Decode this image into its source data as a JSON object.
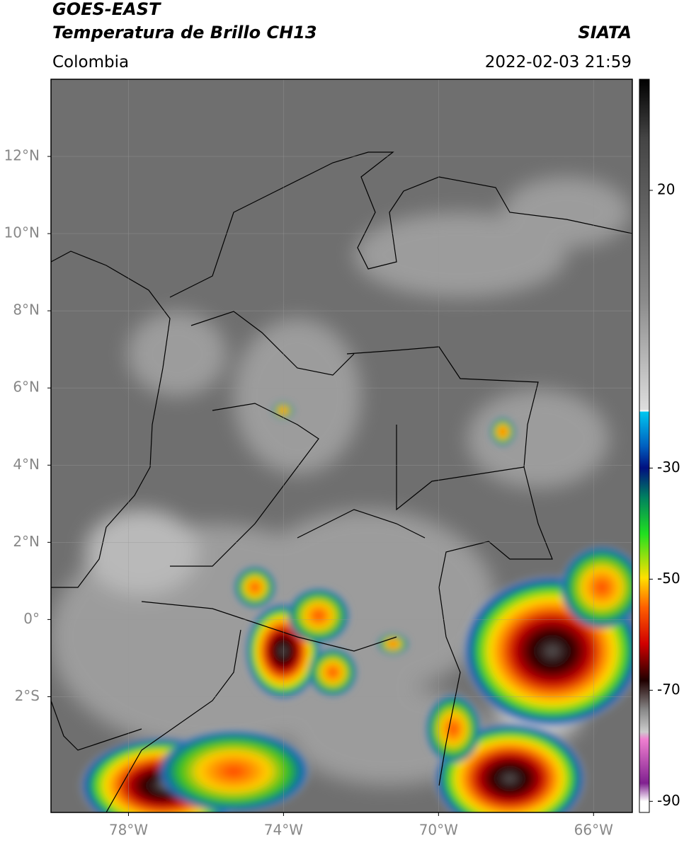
{
  "header": {
    "title": "GOES-EAST",
    "subtitle": "Temperatura de Brillo CH13",
    "source": "SIATA",
    "region": "Colombia",
    "datetime": "2022-02-03 21:59"
  },
  "map": {
    "xlim": [
      -80,
      -65
    ],
    "ylim": [
      -5,
      14
    ],
    "xticks": [
      {
        "value": -78,
        "label": "78°W"
      },
      {
        "value": -74,
        "label": "74°W"
      },
      {
        "value": -70,
        "label": "70°W"
      },
      {
        "value": -66,
        "label": "66°W"
      }
    ],
    "yticks": [
      {
        "value": 12,
        "label": "12°N"
      },
      {
        "value": 10,
        "label": "10°N"
      },
      {
        "value": 8,
        "label": "8°N"
      },
      {
        "value": 6,
        "label": "6°N"
      },
      {
        "value": 4,
        "label": "4°N"
      },
      {
        "value": 2,
        "label": "2°N"
      },
      {
        "value": 0,
        "label": "0°"
      },
      {
        "value": -2,
        "label": "2°S"
      }
    ]
  },
  "colorbar": {
    "lim": [
      -92,
      40
    ],
    "ticks": [
      20,
      -30,
      -50,
      -70,
      -90
    ]
  }
}
